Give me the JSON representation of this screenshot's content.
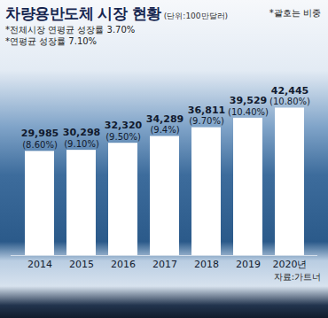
{
  "chart_data": {
    "type": "bar",
    "title": "차량용반도체 시장 현황",
    "subtitle": "(단위:100만달러)",
    "annotations": [
      "*괄호는 비중",
      "*전체시장 연평균 성장률 3.70%",
      "*연평균 성장률 7.10%"
    ],
    "source": "자료:가트너",
    "categories": [
      "2014",
      "2015",
      "2016",
      "2017",
      "2018",
      "2019",
      "2020년"
    ],
    "values": [
      29985,
      30298,
      32320,
      34289,
      36811,
      39529,
      42445
    ],
    "value_labels": [
      "29,985",
      "30,298",
      "32,320",
      "34,289",
      "36,811",
      "39,529",
      "42,445"
    ],
    "shares": [
      8.6,
      9.1,
      9.5,
      9.4,
      9.7,
      10.4,
      10.8
    ],
    "share_labels": [
      "(8.60%)",
      "(9.10%)",
      "(9.50%)",
      "(9.4%)",
      "(9.70%)",
      "(10.40%)",
      "(10.80%)"
    ],
    "color": "#ffffff",
    "ylim": [
      0,
      52000
    ],
    "yticks": [],
    "grid": false,
    "data_labels": true,
    "tick_labels": "x"
  }
}
